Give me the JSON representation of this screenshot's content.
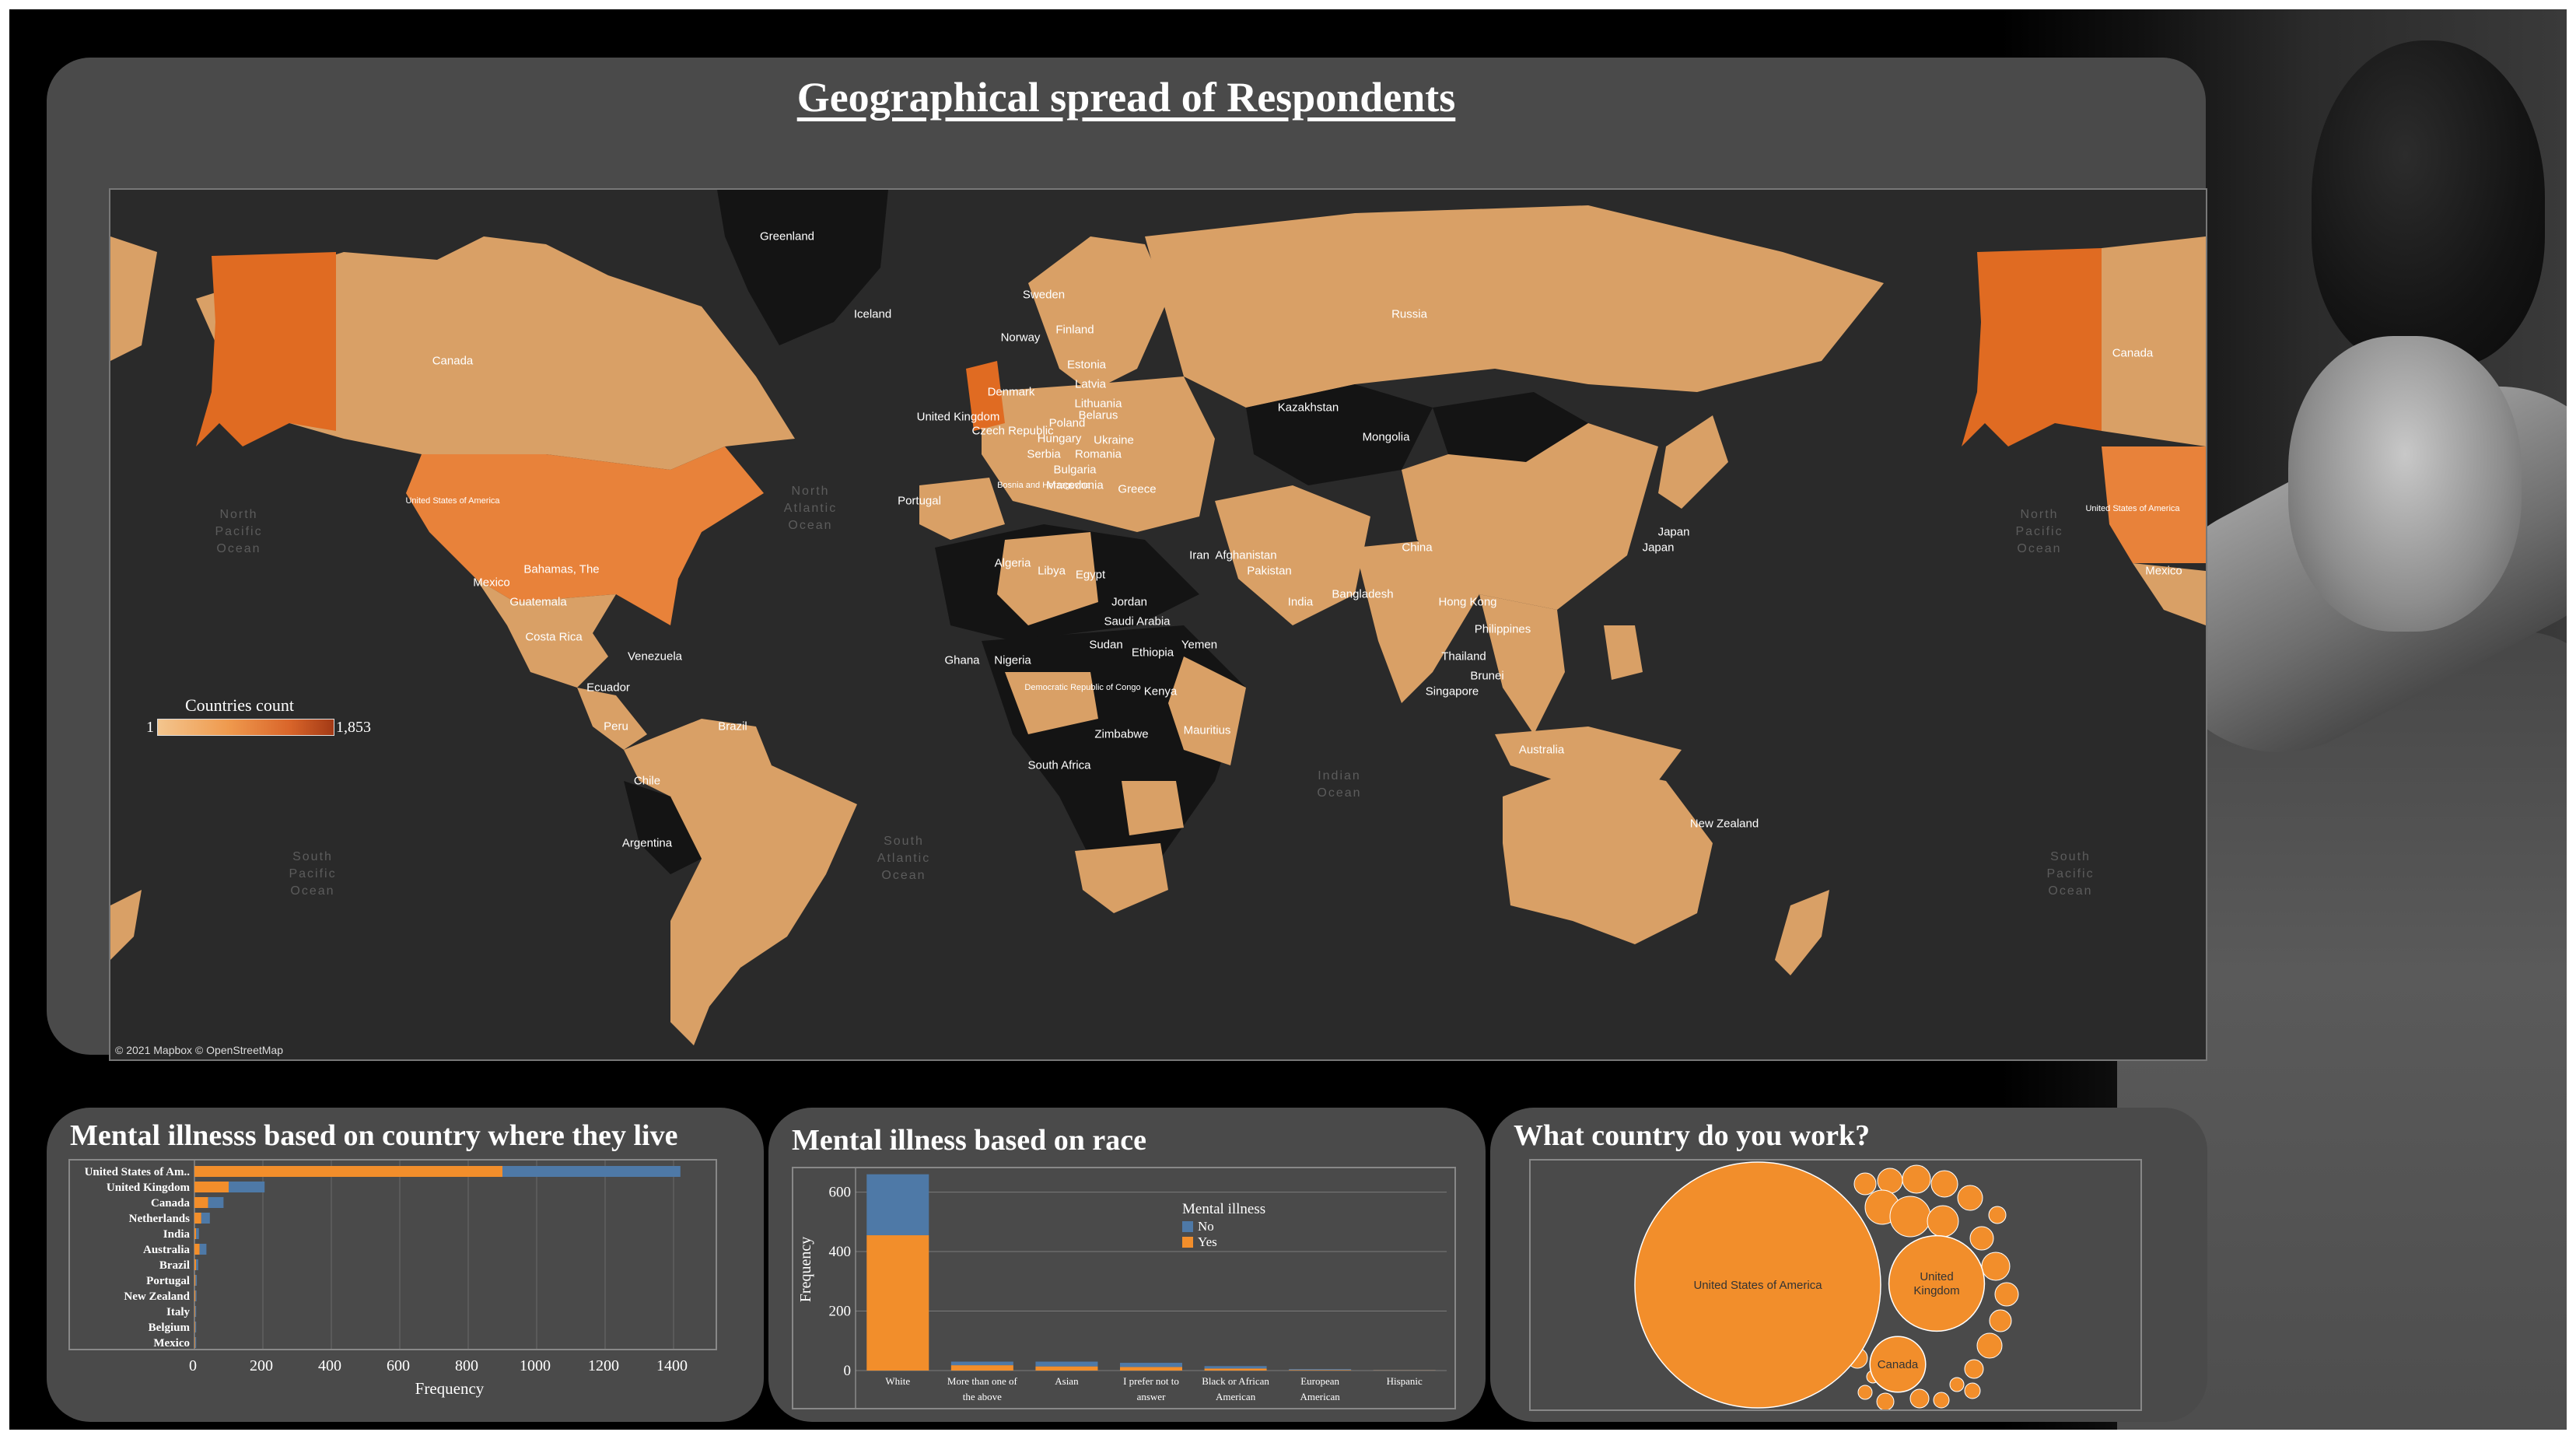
{
  "map_section": {
    "title": "Geographical spread of Respondents",
    "legend": {
      "title": "Countries count",
      "min": "1",
      "max": "1,853"
    },
    "credit": "© 2021 Mapbox © OpenStreetMap",
    "country_labels": [
      "Canada",
      "United States of America",
      "Mexico",
      "Bahamas, The",
      "Guatemala",
      "Costa Rica",
      "Venezuela",
      "Ecuador",
      "Peru",
      "Brazil",
      "Chile",
      "Argentina",
      "Greenland",
      "Iceland",
      "Sweden",
      "Norway",
      "Finland",
      "Estonia",
      "Latvia",
      "Lithuania",
      "Denmark",
      "United Kingdom",
      "Belarus",
      "Ukraine",
      "Poland",
      "Czech Republic",
      "Hungary",
      "Romania",
      "Serbia",
      "Bulgaria",
      "Bosnia and Herzegovina",
      "Macedonia",
      "Greece",
      "Portugal",
      "Algeria",
      "Libya",
      "Egypt",
      "Jordan",
      "Iran",
      "Afghanistan",
      "Pakistan",
      "India",
      "Bangladesh",
      "Russia",
      "Kazakhstan",
      "Mongolia",
      "China",
      "Japan",
      "Hong Kong",
      "Philippines",
      "Thailand",
      "Singapore",
      "Brunei",
      "Saudi Arabia",
      "Yemen",
      "Sudan",
      "Ghana",
      "Nigeria",
      "Ethiopia",
      "Kenya",
      "Democratic Republic of Congo",
      "Zimbabwe",
      "South Africa",
      "Mauritius",
      "Australia",
      "New Zealand",
      "Canada",
      "United States of America",
      "Mexico",
      "Japan"
    ],
    "ocean_labels": [
      "North\nPacific\nOcean",
      "North\nAtlantic\nOcean",
      "South\nPacific\nOcean",
      "South\nAtlantic\nOcean",
      "Indian\nOcean",
      "North\nPacific\nOcean",
      "South\nPacific\nOcean"
    ],
    "colors": {
      "low": "#d9a066",
      "mid": "#e8823a",
      "high": "#e06b22",
      "land_dark": "#141414",
      "water": "#2a2a2a"
    }
  },
  "country_chart": {
    "title": "Mental illnesss based on country where they live",
    "xlabel": "Frequency",
    "chart_data": {
      "type": "bar",
      "orientation": "horizontal",
      "stacked": true,
      "categories": [
        "United States of Am..",
        "United Kingdom",
        "Canada",
        "Netherlands",
        "India",
        "Australia",
        "Brazil",
        "Portugal",
        "New Zealand",
        "Italy",
        "Belgium",
        "Mexico"
      ],
      "series": [
        {
          "name": "Yes",
          "color": "#f28e2b",
          "values": [
            900,
            100,
            40,
            20,
            5,
            15,
            5,
            3,
            3,
            2,
            2,
            2
          ]
        },
        {
          "name": "No",
          "color": "#4e79a7",
          "values": [
            520,
            105,
            45,
            25,
            8,
            20,
            6,
            4,
            3,
            3,
            3,
            3
          ]
        }
      ],
      "xticks": [
        "0",
        "200",
        "400",
        "600",
        "800",
        "1000",
        "1200",
        "1400"
      ],
      "xlim": [
        0,
        1500
      ],
      "xlabel": "Frequency"
    }
  },
  "race_chart": {
    "title": "Mental illness based on race",
    "ylabel": "Frequency",
    "legend_title": "Mental illness",
    "chart_data": {
      "type": "bar",
      "stacked": true,
      "categories": [
        "White",
        "More than one of the above",
        "Asian",
        "I prefer not to answer",
        "Black or African American",
        "European American",
        "Hispanic"
      ],
      "category_lines": [
        [
          "White"
        ],
        [
          "More than one of",
          "the above"
        ],
        [
          "Asian"
        ],
        [
          "I prefer not to",
          "answer"
        ],
        [
          "Black or African",
          "American"
        ],
        [
          "European",
          "American"
        ],
        [
          "Hispanic"
        ]
      ],
      "series": [
        {
          "name": "Yes",
          "color": "#f28e2b",
          "values": [
            455,
            18,
            14,
            12,
            7,
            2,
            1
          ]
        },
        {
          "name": "No",
          "color": "#4e79a7",
          "values": [
            205,
            12,
            16,
            14,
            8,
            3,
            1
          ]
        }
      ],
      "yticks": [
        "0",
        "200",
        "400",
        "600"
      ],
      "ylim": [
        0,
        680
      ],
      "ylabel": "Frequency"
    }
  },
  "work_chart": {
    "title": "What country do you work?",
    "chart_data": {
      "type": "bubble",
      "color": "#f28e2b",
      "bubbles": [
        {
          "label": "United States of America",
          "value": 1853
        },
        {
          "label": "United Kingdom",
          "value": 280
        },
        {
          "label": "Canada",
          "value": 95
        }
      ]
    }
  }
}
